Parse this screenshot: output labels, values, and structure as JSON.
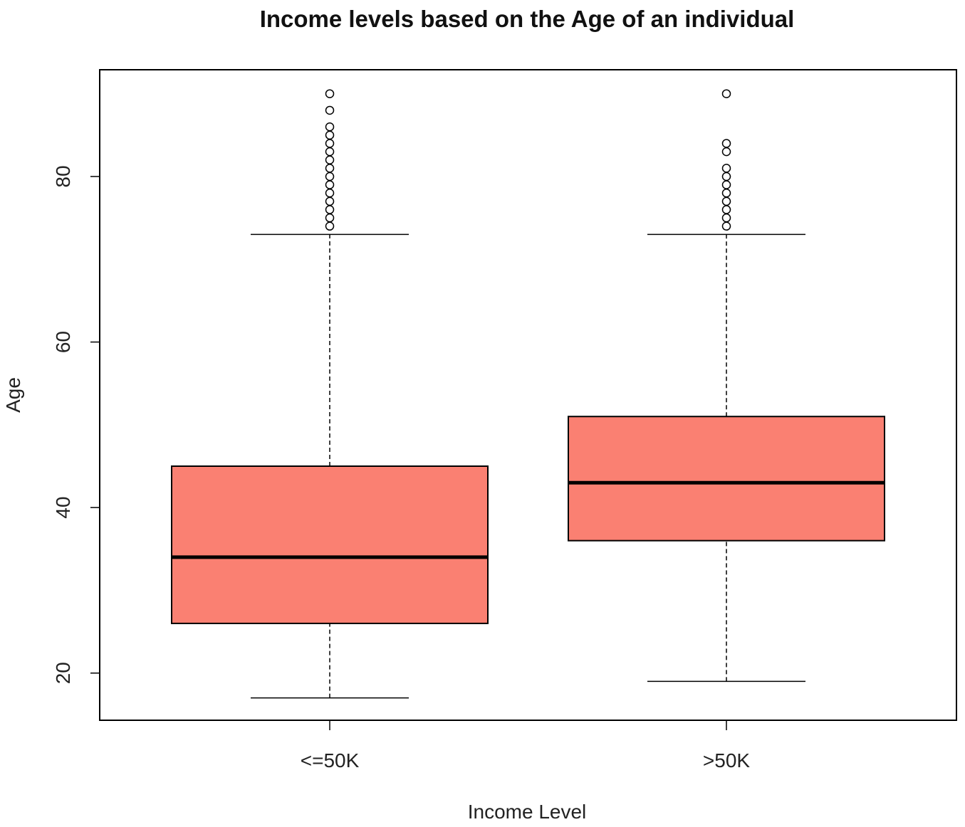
{
  "chart_data": {
    "type": "box",
    "title": "Income levels based on the Age of an individual",
    "xlabel": "Income Level",
    "ylabel": "Age",
    "ylim": [
      14.3,
      92.9
    ],
    "yticks": [
      20,
      40,
      60,
      80
    ],
    "grid": false,
    "box_color": "#fa8072",
    "categories": [
      "<=50K",
      ">50K"
    ],
    "boxes": [
      {
        "category": "<=50K",
        "whisker_low": 17,
        "q1": 26,
        "median": 34,
        "q3": 45,
        "whisker_high": 73,
        "outliers": [
          74,
          75,
          76,
          77,
          78,
          79,
          80,
          81,
          82,
          83,
          84,
          85,
          86,
          88,
          90
        ]
      },
      {
        "category": ">50K",
        "whisker_low": 19,
        "q1": 36,
        "median": 43,
        "q3": 51,
        "whisker_high": 73,
        "outliers": [
          74,
          75,
          76,
          77,
          78,
          79,
          80,
          81,
          83,
          84,
          90
        ]
      }
    ]
  }
}
